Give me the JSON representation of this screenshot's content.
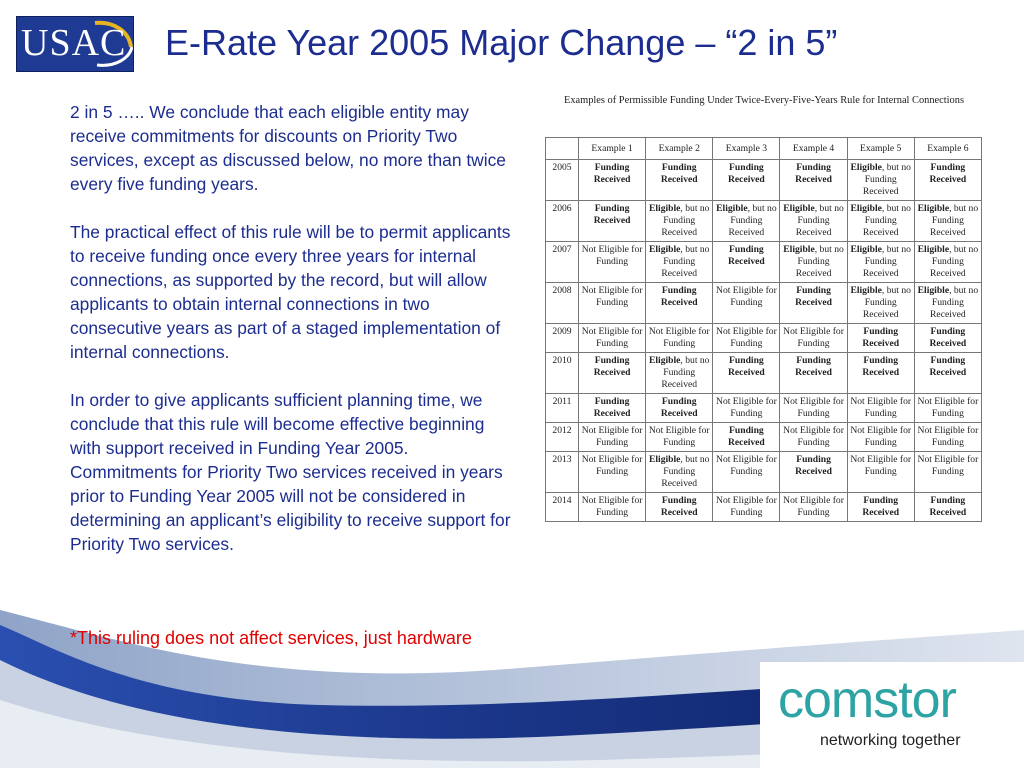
{
  "slide": {
    "title": "E-Rate Year 2005 Major Change – “2 in 5”",
    "logo_text": "USAC",
    "paragraphs": [
      "2 in 5 ….. We conclude that each eligible entity may receive commitments for discounts on Priority Two services, except as discussed below, no more than twice every five funding years.",
      "The practical effect of this rule will be to permit applicants to receive funding once every three years for internal connections, as supported by the record, but will allow applicants to obtain internal connections in two consecutive years as part of a staged implementation of internal connections.",
      " In order to give applicants sufficient planning time, we conclude that this rule will become effective beginning with support received in Funding Year 2005. Commitments for Priority Two services received in years prior to Funding Year 2005 will not be considered in determining an applicant’s eligibility to receive support for Priority Two services."
    ],
    "note": "*This ruling does not affect services, just hardware"
  },
  "table": {
    "caption": "Examples of Permissible Funding Under Twice-Every-Five-Years Rule for Internal Connections",
    "headers": [
      "",
      "Example 1",
      "Example 2",
      "Example 3",
      "Example 4",
      "Example 5",
      "Example 6"
    ],
    "rows": [
      {
        "year": "2005",
        "cells": [
          "FR",
          "FR",
          "FR",
          "FR",
          "E",
          "FR"
        ]
      },
      {
        "year": "2006",
        "cells": [
          "FR",
          "E",
          "E",
          "E",
          "E",
          "E"
        ]
      },
      {
        "year": "2007",
        "cells": [
          "NE",
          "E",
          "FR",
          "E",
          "E",
          "E"
        ]
      },
      {
        "year": "2008",
        "cells": [
          "NE",
          "FR",
          "NE",
          "FR",
          "E",
          "E"
        ]
      },
      {
        "year": "2009",
        "cells": [
          "NE",
          "NE",
          "NE",
          "NE",
          "FR",
          "FR"
        ]
      },
      {
        "year": "2010",
        "cells": [
          "FR",
          "E",
          "FR",
          "FR",
          "FR",
          "FR"
        ]
      },
      {
        "year": "2011",
        "cells": [
          "FR",
          "FR",
          "NE",
          "NE",
          "NE",
          "NE"
        ]
      },
      {
        "year": "2012",
        "cells": [
          "NE",
          "NE",
          "FR",
          "NE",
          "NE",
          "NE"
        ]
      },
      {
        "year": "2013",
        "cells": [
          "NE",
          "E",
          "NE",
          "FR",
          "NE",
          "NE"
        ]
      },
      {
        "year": "2014",
        "cells": [
          "NE",
          "FR",
          "NE",
          "NE",
          "FR",
          "FR"
        ]
      }
    ],
    "labels": {
      "funding_received": "Funding Received",
      "eligible_bold": "Eligible",
      "eligible_rest": ", but no Funding Received",
      "not_eligible": "Not Eligible for Funding"
    }
  },
  "footer": {
    "brand": "comstor",
    "tagline": "networking together"
  },
  "colors": {
    "title": "#1c2d8f",
    "note": "#e00000",
    "brand": "#2ea3a3",
    "swoosh_dark": "#1f3a93",
    "swoosh_light": "#b8c4d8"
  }
}
